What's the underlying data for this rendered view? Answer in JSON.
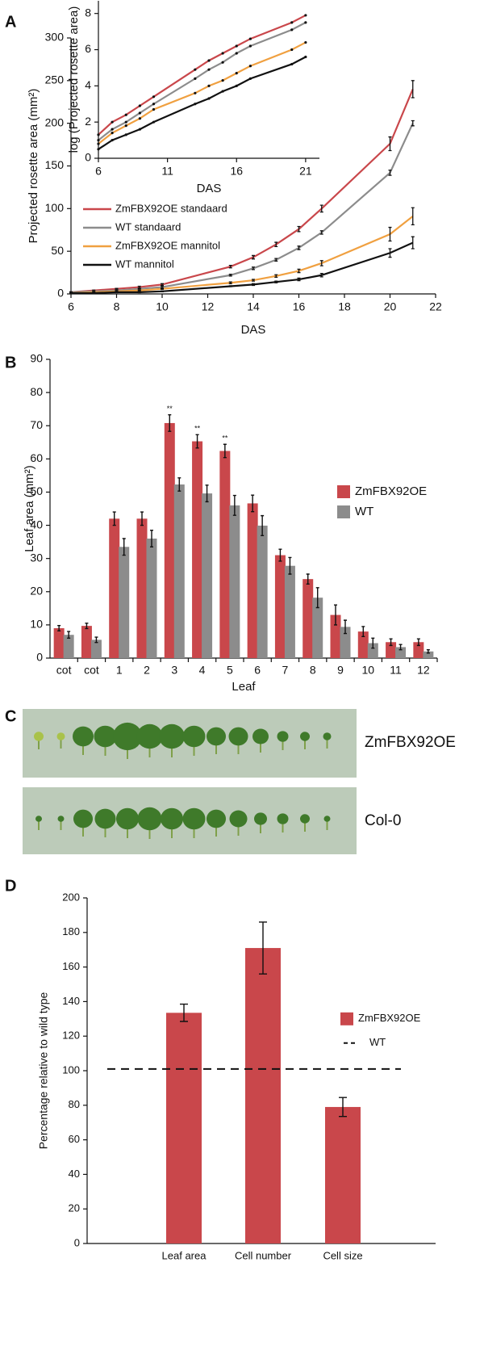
{
  "chart_data": [
    {
      "type": "line",
      "panel_label": "A",
      "xlabel": "DAS",
      "ylabel": "Projected rosette area (mm²)",
      "x": [
        6,
        7,
        8,
        9,
        10,
        13,
        14,
        15,
        16,
        17,
        20,
        21
      ],
      "xlim": [
        6,
        22
      ],
      "xticks": [
        6,
        8,
        10,
        12,
        14,
        16,
        18,
        20,
        22
      ],
      "ylim": [
        0,
        300
      ],
      "yticks": [
        0,
        50,
        100,
        150,
        200,
        250,
        300
      ],
      "legend": "left",
      "series": [
        {
          "name": "ZmFBX92OE standaard",
          "color": "#c9474b",
          "values": [
            2,
            4,
            6,
            8,
            11,
            32,
            43,
            58,
            76,
            100,
            176,
            240
          ],
          "errors": [
            0.5,
            0.5,
            0.5,
            1,
            1,
            1.5,
            2,
            2.5,
            3,
            4,
            8,
            10
          ]
        },
        {
          "name": "WT standaard",
          "color": "#8c8c8c",
          "values": [
            2,
            3,
            4,
            6,
            8,
            22,
            30,
            40,
            54,
            72,
            142,
            200
          ],
          "errors": [
            0.5,
            0.5,
            0.5,
            0.5,
            1,
            1,
            1.5,
            1.5,
            2,
            2,
            3,
            3
          ]
        },
        {
          "name": "ZmFBX92OE mannitol",
          "color": "#f0a040",
          "values": [
            1,
            2,
            3,
            4,
            6,
            13,
            16,
            21,
            27,
            36,
            70,
            91
          ],
          "errors": [
            0.5,
            0.5,
            0.5,
            0.5,
            0.5,
            1,
            1,
            1.5,
            2,
            3,
            8,
            10
          ]
        },
        {
          "name": "WT mannitol",
          "color": "#111111",
          "values": [
            1,
            1,
            2,
            2,
            3,
            9,
            11,
            14,
            17,
            22,
            48,
            60
          ],
          "errors": [
            0.5,
            0.5,
            0.5,
            0.5,
            0.5,
            0.5,
            1,
            1,
            1.5,
            2,
            5,
            7
          ]
        }
      ]
    },
    {
      "type": "line",
      "xlabel": "DAS",
      "ylabel": "log (Projected rosette area)",
      "x": [
        6,
        7,
        8,
        9,
        10,
        13,
        14,
        15,
        16,
        17,
        20,
        21
      ],
      "xlim": [
        6,
        22
      ],
      "xticks": [
        6,
        11,
        16,
        21
      ],
      "ylim": [
        0,
        8.7
      ],
      "yticks": [
        0,
        2,
        4,
        6,
        8
      ],
      "series": [
        {
          "color": "#c9474b",
          "values": [
            1.3,
            2.0,
            2.4,
            2.9,
            3.4,
            4.9,
            5.4,
            5.8,
            6.2,
            6.6,
            7.5,
            7.9
          ]
        },
        {
          "color": "#8c8c8c",
          "values": [
            1.0,
            1.6,
            2.0,
            2.5,
            3.0,
            4.4,
            4.9,
            5.3,
            5.8,
            6.2,
            7.1,
            7.5
          ]
        },
        {
          "color": "#f0a040",
          "values": [
            0.8,
            1.4,
            1.8,
            2.2,
            2.7,
            3.6,
            4.0,
            4.3,
            4.7,
            5.1,
            6.0,
            6.4
          ]
        },
        {
          "color": "#111111",
          "values": [
            0.5,
            1.0,
            1.3,
            1.6,
            2.0,
            3.0,
            3.3,
            3.7,
            4.0,
            4.4,
            5.2,
            5.6
          ]
        }
      ]
    },
    {
      "type": "grouped-bar",
      "panel_label": "B",
      "xlabel": "Leaf",
      "ylabel": "Leaf area (mm²)",
      "categories": [
        "cot",
        "cot",
        "1",
        "2",
        "3",
        "4",
        "5",
        "6",
        "7",
        "8",
        "9",
        "10",
        "11",
        "12"
      ],
      "ylim": [
        0,
        90
      ],
      "yticks": [
        0,
        10,
        20,
        30,
        40,
        50,
        60,
        70,
        80,
        90
      ],
      "legend": "right",
      "significance": [
        null,
        null,
        null,
        null,
        "**",
        "**",
        "**",
        null,
        null,
        null,
        null,
        null,
        null,
        null
      ],
      "series": [
        {
          "name": "ZmFBX92OE",
          "color": "#c9474b",
          "values": [
            9,
            9.7,
            42,
            42,
            70.8,
            65.3,
            62.4,
            46.6,
            31,
            23.8,
            13,
            8,
            4.8,
            4.8
          ],
          "errors": [
            0.8,
            0.8,
            2,
            2,
            2.5,
            2,
            2,
            2.5,
            1.8,
            1.5,
            3,
            1.5,
            1,
            1
          ]
        },
        {
          "name": "WT",
          "color": "#8c8c8c",
          "values": [
            7,
            5.5,
            33.5,
            36,
            52.3,
            49.6,
            46,
            39.9,
            27.8,
            18.2,
            9.4,
            4.5,
            3.3,
            2
          ],
          "errors": [
            1,
            0.8,
            2.5,
            2.5,
            2,
            2.5,
            3,
            3,
            2.5,
            3,
            2,
            1.5,
            0.8,
            0.5
          ]
        }
      ]
    },
    {
      "type": "bar",
      "panel_label": "D",
      "ylabel": "Percentage relative to wild type",
      "categories": [
        "Leaf area",
        "Cell number",
        "Cell size"
      ],
      "ylim": [
        0,
        200
      ],
      "yticks": [
        0,
        20,
        40,
        60,
        80,
        100,
        120,
        140,
        160,
        180,
        200
      ],
      "legend": "right",
      "series": [
        {
          "name": "ZmFBX92OE",
          "color": "#c9474b",
          "values": [
            133.5,
            171,
            79
          ],
          "errors": [
            5,
            15,
            5.5
          ]
        }
      ],
      "reference_line": {
        "name": "WT",
        "value": 101
      }
    }
  ],
  "photos": {
    "panel_label": "C",
    "rows": [
      {
        "label": "ZmFBX92OE"
      },
      {
        "label": "Col-0"
      }
    ]
  }
}
